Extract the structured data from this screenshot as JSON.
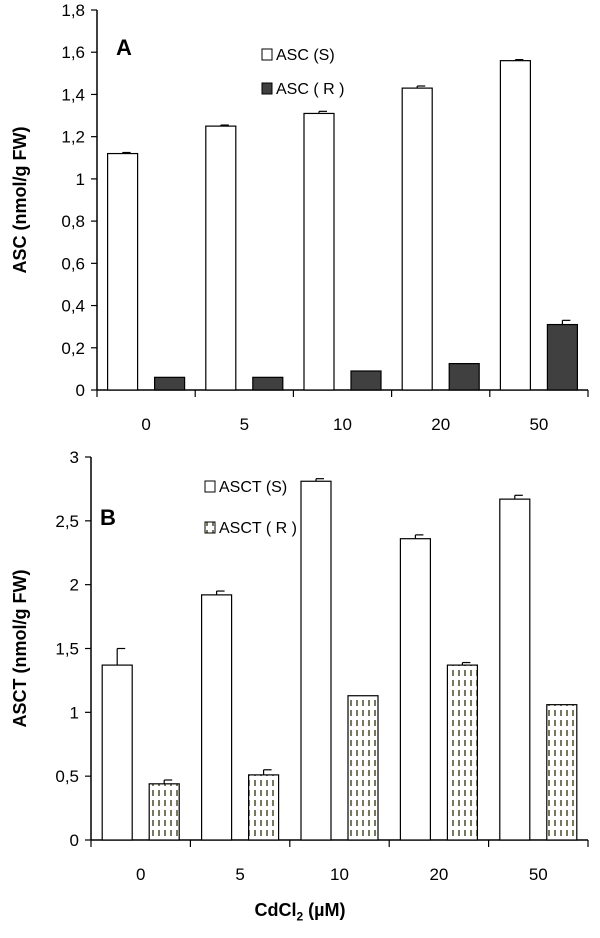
{
  "chart_data": [
    {
      "type": "bar",
      "panel_label": "A",
      "ylabel": "ASC (nmol/g FW)",
      "xlabel": "",
      "categories": [
        "0",
        "5",
        "10",
        "20",
        "50"
      ],
      "ylim": [
        0,
        1.8
      ],
      "yticks": [
        "0",
        "0,2",
        "0,4",
        "0,6",
        "0,8",
        "1",
        "1,2",
        "1,4",
        "1,6",
        "1,8"
      ],
      "grid": false,
      "legend_position": "top-center",
      "series": [
        {
          "name": "ASC (S)",
          "values": [
            1.12,
            1.25,
            1.31,
            1.43,
            1.56
          ],
          "errors": [
            0.005,
            0.005,
            0.01,
            0.01,
            0.005
          ],
          "color": "#ffffff",
          "pattern": "solid"
        },
        {
          "name": "ASC ( R )",
          "values": [
            0.06,
            0.06,
            0.09,
            0.125,
            0.31
          ],
          "errors": [
            0,
            0,
            0,
            0,
            0.02
          ],
          "color": "#404040",
          "pattern": "solid"
        }
      ]
    },
    {
      "type": "bar",
      "panel_label": "B",
      "ylabel": "ASCT (nmol/g FW)",
      "xlabel": "CdCl2 (µM)",
      "categories": [
        "0",
        "5",
        "10",
        "20",
        "50"
      ],
      "ylim": [
        0,
        3
      ],
      "yticks": [
        "0",
        "0,5",
        "1",
        "1,5",
        "2",
        "2,5",
        "3"
      ],
      "grid": false,
      "legend_position": "top-center",
      "series": [
        {
          "name": "ASCT (S)",
          "values": [
            1.37,
            1.92,
            2.81,
            2.36,
            2.67
          ],
          "errors": [
            0.13,
            0.03,
            0.02,
            0.03,
            0.03
          ],
          "color": "#ffffff",
          "pattern": "solid"
        },
        {
          "name": "ASCT ( R )",
          "values": [
            0.44,
            0.51,
            1.13,
            1.37,
            1.06
          ],
          "errors": [
            0.03,
            0.04,
            0,
            0.02,
            0
          ],
          "color": "#ffffff",
          "pattern": "dashed"
        }
      ]
    }
  ],
  "x_axis_title": {
    "main": "CdCl",
    "subscript": "2",
    "unit": " (µM)"
  }
}
